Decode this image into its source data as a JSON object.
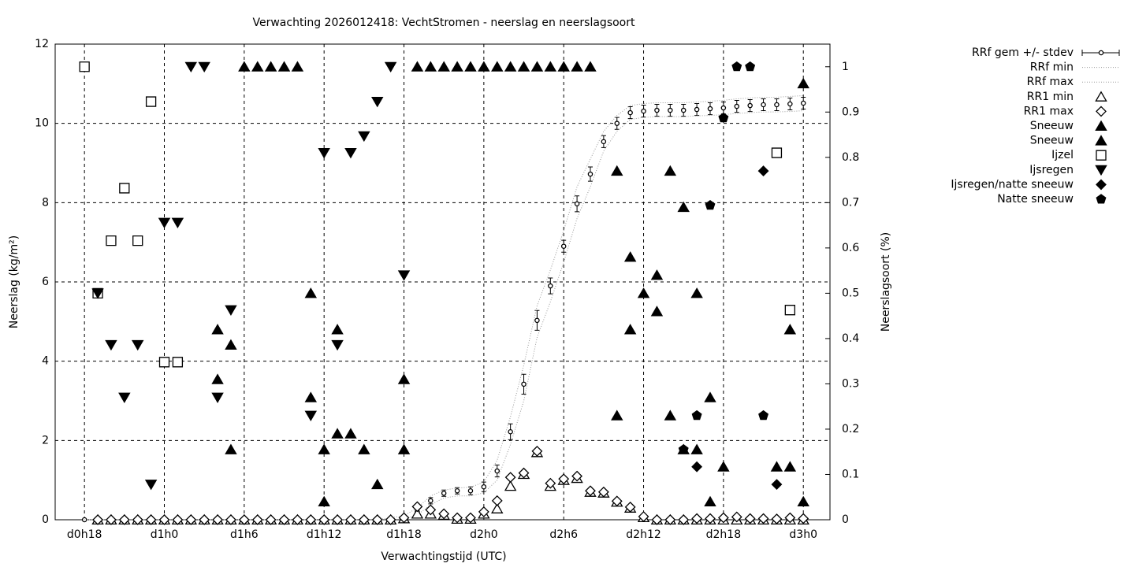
{
  "chart_data": {
    "type": "scatter",
    "title": "Verwachting 2026012418: VechtStromen - neerslag en neerslagsoort",
    "x_label": "Verwachtingstijd (UTC)",
    "y_label": "Neerslag (kg/m²)",
    "y2_label": "Neerslagsoort (%)",
    "grid": true,
    "legend": "outside-right",
    "xlim": [
      15.8,
      74
    ],
    "xticks": [
      {
        "value": 18,
        "label": "d0h18"
      },
      {
        "value": 24,
        "label": "d1h0"
      },
      {
        "value": 30,
        "label": "d1h6"
      },
      {
        "value": 36,
        "label": "d1h12"
      },
      {
        "value": 42,
        "label": "d1h18"
      },
      {
        "value": 48,
        "label": "d2h0"
      },
      {
        "value": 54,
        "label": "d2h6"
      },
      {
        "value": 60,
        "label": "d2h12"
      },
      {
        "value": 66,
        "label": "d2h18"
      },
      {
        "value": 72,
        "label": "d3h0"
      }
    ],
    "ylim": [
      0,
      12
    ],
    "yticks": [
      0,
      2,
      4,
      6,
      8,
      10,
      12
    ],
    "y2lim": [
      0,
      1.05
    ],
    "y2ticks": [
      0,
      0.1,
      0.2,
      0.3,
      0.4,
      0.5,
      0.6,
      0.7,
      0.8,
      0.9,
      1
    ],
    "x": [
      18,
      19,
      20,
      21,
      22,
      23,
      24,
      25,
      26,
      27,
      28,
      29,
      30,
      31,
      32,
      33,
      34,
      35,
      36,
      37,
      38,
      39,
      40,
      41,
      42,
      43,
      44,
      45,
      46,
      47,
      48,
      49,
      50,
      51,
      52,
      53,
      54,
      55,
      56,
      57,
      58,
      59,
      60,
      61,
      62,
      63,
      64,
      65,
      66,
      67,
      68,
      69,
      70,
      71,
      72
    ],
    "series": [
      {
        "name": "RRf gem +/- stdev",
        "color": "#000000",
        "style": "errorbar",
        "marker": "circle-open",
        "axis": "y",
        "values": [
          0,
          0,
          0,
          0,
          0,
          0,
          0,
          0,
          0,
          0,
          0,
          0,
          0,
          0,
          0,
          0,
          0,
          0,
          0,
          0,
          0,
          0,
          0,
          0.02,
          0.05,
          0.2,
          0.48,
          0.67,
          0.73,
          0.73,
          0.83,
          1.23,
          2.22,
          3.42,
          5.03,
          5.9,
          6.9,
          7.97,
          8.72,
          9.54,
          10.0,
          10.27,
          10.31,
          10.33,
          10.33,
          10.33,
          10.35,
          10.37,
          10.39,
          10.43,
          10.45,
          10.47,
          10.47,
          10.49,
          10.51
        ],
        "errors": [
          0,
          0,
          0,
          0,
          0,
          0,
          0,
          0,
          0,
          0,
          0,
          0,
          0,
          0,
          0,
          0,
          0,
          0,
          0,
          0,
          0,
          0,
          0,
          0.02,
          0.03,
          0.05,
          0.08,
          0.08,
          0.08,
          0.1,
          0.12,
          0.15,
          0.2,
          0.25,
          0.25,
          0.2,
          0.15,
          0.2,
          0.18,
          0.15,
          0.15,
          0.15,
          0.15,
          0.15,
          0.15,
          0.15,
          0.15,
          0.15,
          0.15,
          0.15,
          0.15,
          0.15,
          0.15,
          0.15,
          0.15
        ]
      },
      {
        "name": "RRf min",
        "color": "#999999",
        "style": "dotted",
        "axis": "y",
        "values": [
          0,
          0,
          0,
          0,
          0,
          0,
          0,
          0,
          0,
          0,
          0,
          0,
          0,
          0,
          0,
          0,
          0,
          0,
          0,
          0,
          0,
          0,
          0,
          0,
          0.02,
          0.12,
          0.38,
          0.55,
          0.6,
          0.6,
          0.68,
          1.0,
          1.9,
          3.0,
          4.6,
          5.5,
          6.5,
          7.6,
          8.4,
          9.3,
          9.8,
          10.1,
          10.15,
          10.17,
          10.17,
          10.17,
          10.19,
          10.2,
          10.22,
          10.25,
          10.27,
          10.29,
          10.29,
          10.3,
          10.32
        ]
      },
      {
        "name": "RRf max",
        "color": "#999999",
        "style": "dotted",
        "axis": "y",
        "values": [
          0,
          0,
          0,
          0,
          0,
          0,
          0,
          0,
          0,
          0,
          0,
          0,
          0,
          0,
          0,
          0,
          0,
          0,
          0,
          0,
          0,
          0,
          0,
          0.05,
          0.1,
          0.3,
          0.6,
          0.75,
          0.8,
          0.82,
          0.95,
          1.5,
          2.6,
          3.9,
          5.4,
          6.3,
          7.3,
          8.4,
          9.1,
          9.8,
          10.2,
          10.45,
          10.5,
          10.52,
          10.52,
          10.52,
          10.54,
          10.56,
          10.58,
          10.62,
          10.64,
          10.66,
          10.66,
          10.68,
          10.7
        ]
      },
      {
        "name": "RR1 min",
        "color": "#000000",
        "style": "points",
        "marker": "triangle-up-open",
        "axis": "y",
        "values": [
          null,
          0,
          0,
          0,
          0,
          0,
          0,
          0,
          0,
          0,
          0,
          0,
          0,
          0,
          0,
          0,
          0,
          0,
          0,
          0,
          0,
          0,
          0,
          0,
          0.03,
          0.15,
          0.15,
          0.12,
          0.02,
          0.02,
          0.15,
          0.28,
          0.85,
          1.15,
          1.7,
          0.85,
          1.0,
          1.05,
          0.7,
          0.68,
          0.45,
          0.3,
          0.06,
          0,
          0,
          0,
          0,
          0,
          0,
          0,
          0,
          0,
          0,
          0,
          0
        ]
      },
      {
        "name": "RR1 max",
        "color": "#000000",
        "style": "points",
        "marker": "diamond-open",
        "axis": "y",
        "values": [
          null,
          0,
          0,
          0,
          0,
          0,
          0,
          0,
          0,
          0,
          0,
          0,
          0,
          0,
          0,
          0,
          0,
          0,
          0,
          0,
          0,
          0,
          0,
          0,
          0.05,
          0.33,
          0.25,
          0.15,
          0.05,
          0.05,
          0.2,
          0.48,
          1.07,
          1.18,
          1.73,
          0.92,
          1.03,
          1.1,
          0.73,
          0.7,
          0.47,
          0.32,
          0.08,
          0,
          0,
          0,
          0.03,
          0.03,
          0.05,
          0.07,
          0.03,
          0.03,
          0.02,
          0.05,
          0.03
        ]
      },
      {
        "name": "Sneeuw",
        "color": "#000000",
        "style": "points",
        "marker": "triangle-up-filled",
        "axis": "y2",
        "values": [
          null,
          null,
          null,
          null,
          null,
          null,
          null,
          null,
          null,
          null,
          0.42,
          0.386,
          1,
          1,
          1,
          1,
          1,
          0.5,
          0.155,
          0.42,
          0.19,
          0.155,
          0.078,
          null,
          0.31,
          1,
          1,
          1,
          1,
          1,
          1,
          1,
          1,
          1,
          1,
          1,
          1,
          1,
          1,
          null,
          0.77,
          0.58,
          0.5,
          0.54,
          0.77,
          0.69,
          0.5,
          0.27,
          0.117,
          null,
          null,
          null,
          0.117,
          0.42,
          0.963
        ]
      },
      {
        "name": "Sneeuw",
        "color": "#000000",
        "style": "points",
        "marker": "triangle-up-filled",
        "axis": "y2",
        "values": [
          null,
          null,
          null,
          null,
          null,
          null,
          null,
          null,
          null,
          null,
          0.31,
          0.155,
          null,
          null,
          null,
          null,
          null,
          0.27,
          0.04,
          0.19,
          null,
          null,
          null,
          null,
          0.155,
          null,
          null,
          null,
          null,
          null,
          null,
          null,
          null,
          null,
          null,
          null,
          null,
          null,
          null,
          null,
          0.23,
          0.42,
          null,
          0.46,
          0.23,
          0.155,
          0.155,
          0.04,
          null,
          null,
          null,
          null,
          null,
          0.117,
          0.04
        ]
      },
      {
        "name": "Ijzel",
        "color": "#000000",
        "style": "points",
        "marker": "square-open",
        "axis": "y2",
        "values": [
          1,
          0.5,
          0.616,
          0.732,
          0.616,
          0.923,
          0.348,
          0.348,
          null,
          null,
          null,
          null,
          null,
          null,
          null,
          null,
          null,
          null,
          null,
          null,
          null,
          null,
          null,
          null,
          null,
          null,
          null,
          null,
          null,
          null,
          null,
          null,
          null,
          null,
          null,
          null,
          null,
          null,
          null,
          null,
          null,
          null,
          null,
          null,
          null,
          null,
          null,
          null,
          null,
          null,
          null,
          null,
          0.81,
          0.463,
          null
        ]
      },
      {
        "name": "Ijsregen",
        "color": "#000000",
        "style": "points",
        "marker": "triangle-down-filled",
        "axis": "y2",
        "values": [
          null,
          0.5,
          0.386,
          0.27,
          0.386,
          0.078,
          0.656,
          0.656,
          1,
          1,
          0.27,
          0.463,
          null,
          null,
          null,
          null,
          null,
          0.23,
          0.81,
          0.386,
          0.81,
          0.847,
          0.923,
          1,
          0.54,
          null,
          null,
          null,
          null,
          null,
          null,
          null,
          null,
          null,
          null,
          null,
          null,
          null,
          null,
          null,
          null,
          null,
          null,
          null,
          null,
          null,
          null,
          null,
          null,
          null,
          null,
          null,
          null,
          null,
          null
        ]
      },
      {
        "name": "Ijsregen/natte sneeuw",
        "color": "#000000",
        "style": "points",
        "marker": "diamond-filled",
        "axis": "y2",
        "values": [
          null,
          null,
          null,
          null,
          null,
          null,
          null,
          null,
          null,
          null,
          null,
          null,
          null,
          null,
          null,
          null,
          null,
          null,
          null,
          null,
          null,
          null,
          null,
          null,
          null,
          null,
          null,
          null,
          null,
          null,
          null,
          null,
          null,
          null,
          null,
          null,
          null,
          null,
          null,
          null,
          null,
          null,
          null,
          null,
          null,
          null,
          0.117,
          null,
          null,
          null,
          null,
          0.77,
          0.078,
          null,
          null
        ]
      },
      {
        "name": "Natte sneeuw",
        "color": "#000000",
        "style": "points",
        "marker": "pentagon-filled",
        "axis": "y2",
        "values": [
          null,
          null,
          null,
          null,
          null,
          null,
          null,
          null,
          null,
          null,
          null,
          null,
          null,
          null,
          null,
          null,
          null,
          null,
          null,
          null,
          null,
          null,
          null,
          null,
          null,
          null,
          null,
          null,
          null,
          null,
          null,
          null,
          null,
          null,
          null,
          null,
          null,
          null,
          null,
          null,
          null,
          null,
          null,
          null,
          null,
          0.155,
          0.23,
          0.694,
          0.887,
          1,
          1,
          0.23,
          null,
          null,
          null
        ]
      }
    ]
  }
}
